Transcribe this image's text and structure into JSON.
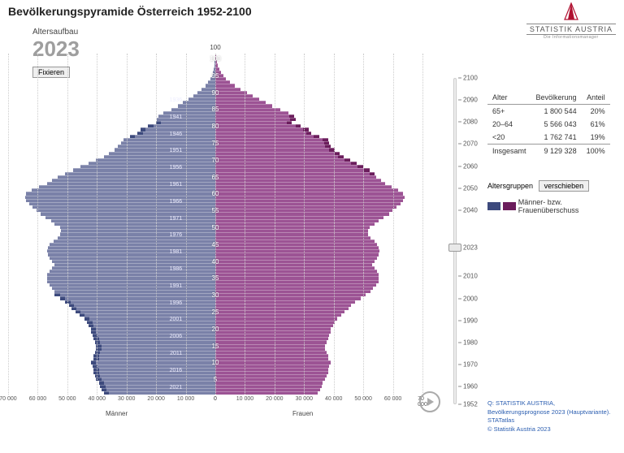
{
  "title": "Bevölkerungspyramide Österreich 1952-2100",
  "logo": {
    "brand": "STATISTIK AUSTRIA",
    "sub": "Die Informationsmanager"
  },
  "yearbox": {
    "label": "Altersaufbau",
    "year": "2023",
    "fix_btn": "Fixieren"
  },
  "chart": {
    "type": "population-pyramid",
    "y_top_label": "100",
    "male_color": "#7a81a8",
    "male_over_color": "#3d4a7d",
    "female_color": "#9c5394",
    "female_over_color": "#6b1d5c",
    "bg": "#ffffff",
    "x_max": 80000,
    "x_ticks_left": [
      "70 000",
      "60 000",
      "50 000",
      "40 000",
      "30 000",
      "20 000",
      "10 000",
      "0"
    ],
    "x_ticks_right": [
      "0",
      "10 000",
      "20 000",
      "30 000",
      "40 000",
      "50 000",
      "60 000",
      "70 000"
    ],
    "x_label_left": "Männer",
    "x_label_right": "Frauen",
    "y_ticks": [
      5,
      10,
      15,
      20,
      25,
      30,
      35,
      40,
      45,
      50,
      55,
      60,
      65,
      70,
      75,
      80,
      85,
      90,
      95,
      100
    ],
    "birthyear_marks": [
      1936,
      1941,
      1946,
      1951,
      1956,
      1961,
      1966,
      1971,
      1976,
      1981,
      1986,
      1991,
      1996,
      2001,
      2006,
      2011,
      2016,
      2021
    ],
    "ages": [
      0,
      1,
      2,
      3,
      4,
      5,
      6,
      7,
      8,
      9,
      10,
      11,
      12,
      13,
      14,
      15,
      16,
      17,
      18,
      19,
      20,
      21,
      22,
      23,
      24,
      25,
      26,
      27,
      28,
      29,
      30,
      31,
      32,
      33,
      34,
      35,
      36,
      37,
      38,
      39,
      40,
      41,
      42,
      43,
      44,
      45,
      46,
      47,
      48,
      49,
      50,
      51,
      52,
      53,
      54,
      55,
      56,
      57,
      58,
      59,
      60,
      61,
      62,
      63,
      64,
      65,
      66,
      67,
      68,
      69,
      70,
      71,
      72,
      73,
      74,
      75,
      76,
      77,
      78,
      79,
      80,
      81,
      82,
      83,
      84,
      85,
      86,
      87,
      88,
      89,
      90,
      91,
      92,
      93,
      94,
      95,
      96,
      97,
      98,
      99,
      100
    ],
    "male": [
      41000,
      42000,
      42500,
      43000,
      44000,
      44500,
      45000,
      45000,
      45500,
      46000,
      45000,
      45000,
      44500,
      44000,
      44000,
      44500,
      45000,
      45500,
      46000,
      46000,
      47000,
      47500,
      48500,
      50500,
      52000,
      53500,
      54500,
      56000,
      58000,
      60000,
      62000,
      63000,
      64000,
      65000,
      65000,
      65000,
      64000,
      63000,
      62000,
      63000,
      64000,
      64500,
      65000,
      64500,
      64000,
      62500,
      61000,
      60000,
      59500,
      60000,
      62000,
      63500,
      65500,
      67500,
      69000,
      70500,
      72000,
      73000,
      73500,
      73000,
      71000,
      68000,
      65000,
      63000,
      61000,
      58000,
      55000,
      52000,
      49000,
      46000,
      43000,
      41000,
      39000,
      37500,
      36500,
      35500,
      31000,
      28000,
      27000,
      24000,
      21000,
      22500,
      22000,
      20000,
      17000,
      14500,
      12500,
      10500,
      8500,
      6800,
      5200,
      3800,
      2800,
      1900,
      1300,
      900,
      600,
      380,
      240,
      150,
      90
    ],
    "female": [
      39500,
      40500,
      41000,
      41500,
      42500,
      43000,
      43500,
      43500,
      44000,
      44500,
      43500,
      43500,
      43000,
      42500,
      42500,
      43000,
      43500,
      44000,
      44500,
      44500,
      45500,
      46000,
      47000,
      48500,
      50000,
      51500,
      52500,
      54000,
      56000,
      58000,
      60000,
      61000,
      62000,
      63000,
      63000,
      63000,
      62500,
      61500,
      60500,
      61500,
      62500,
      63000,
      63500,
      63000,
      62500,
      61500,
      60000,
      59000,
      59000,
      59500,
      61500,
      63000,
      65000,
      67000,
      68500,
      70000,
      71500,
      72500,
      73000,
      72500,
      70500,
      68000,
      65500,
      64000,
      62000,
      59500,
      57500,
      55000,
      52500,
      50000,
      47500,
      46000,
      44000,
      42500,
      42000,
      41500,
      38000,
      35000,
      34000,
      31000,
      27500,
      29000,
      28500,
      28200,
      25000,
      22000,
      19500,
      17000,
      14500,
      12200,
      9800,
      7600,
      5800,
      4200,
      3000,
      2100,
      1450,
      980,
      640,
      400,
      250
    ],
    "male_over": [
      43000,
      44000,
      44500,
      45000,
      46000,
      46500,
      47000,
      47000,
      47500,
      48000,
      47000,
      47000,
      46500,
      46000,
      46000,
      46500,
      47000,
      47500,
      48000,
      48000,
      49000,
      49500,
      50500,
      52500,
      54000,
      55500,
      56500,
      58000,
      60000,
      62000,
      62000,
      63000,
      64000,
      65000,
      65000,
      65000,
      64000,
      63000,
      62000,
      63000,
      64000,
      64500,
      65000,
      64500,
      64000,
      62500,
      61000,
      60000,
      59500,
      60000,
      62000,
      63500,
      65500,
      67500,
      69000,
      70500,
      72000,
      73000,
      73500,
      73000,
      71000,
      68000,
      65000,
      63000,
      61000,
      58000,
      55000,
      52000,
      49000,
      46000,
      43000,
      41000,
      39000,
      37500,
      36500,
      35500,
      33000,
      30000,
      29000,
      26000,
      23000,
      22500,
      22000,
      20000,
      17000,
      14500,
      12500,
      10500,
      8500,
      6800,
      5200,
      3800,
      2800,
      1900,
      1300,
      900,
      600,
      380,
      240,
      150,
      90
    ],
    "female_over": [
      39500,
      40500,
      41000,
      41500,
      42500,
      43000,
      43500,
      43500,
      44000,
      44500,
      43500,
      43500,
      43000,
      42500,
      42500,
      43000,
      43500,
      44000,
      44500,
      44500,
      45500,
      46000,
      47000,
      48500,
      50000,
      51500,
      52500,
      54000,
      56000,
      58000,
      60000,
      61000,
      62000,
      63000,
      63000,
      63000,
      62500,
      61500,
      60500,
      61500,
      62500,
      63000,
      63500,
      63000,
      62500,
      61500,
      60000,
      59000,
      59000,
      59500,
      61500,
      63000,
      65000,
      67000,
      68500,
      70000,
      71500,
      72500,
      73000,
      72500,
      70500,
      68000,
      65500,
      64000,
      62000,
      61500,
      59500,
      57000,
      54500,
      52000,
      49500,
      48000,
      46000,
      44500,
      44000,
      43500,
      40000,
      37000,
      36000,
      33000,
      29500,
      31000,
      30500,
      28200,
      25000,
      22000,
      19500,
      17000,
      14500,
      12200,
      9800,
      7600,
      5800,
      4200,
      3000,
      2100,
      1450,
      980,
      640,
      400,
      250
    ]
  },
  "slider": {
    "min": 1952,
    "max": 2100,
    "value": 2023,
    "ticks": [
      2100,
      2090,
      2080,
      2070,
      2060,
      2050,
      2040,
      2023,
      2010,
      2000,
      1990,
      1980,
      1970,
      1960,
      1952
    ]
  },
  "table": {
    "headers": [
      "Alter",
      "Bevölkerung",
      "Anteil"
    ],
    "rows": [
      {
        "age": "65+",
        "pop": "1 800 544",
        "share": "20%"
      },
      {
        "age": "20–64",
        "pop": "5 566 043",
        "share": "61%"
      },
      {
        "age": "<20",
        "pop": "1 762 741",
        "share": "19%"
      }
    ],
    "total": {
      "label": "Insgesamt",
      "pop": "9 129 328",
      "share": "100%"
    }
  },
  "shift": {
    "label": "Altersgruppen",
    "btn": "verschieben"
  },
  "legend": {
    "text": "Männer- bzw. Frauenüberschuss"
  },
  "source": {
    "l1": "Q: STATISTIK AUSTRIA,",
    "l2": "Bevölkerungsprognose 2023 (Hauptvariante).",
    "l3": "STATatlas",
    "l4": "© Statistik Austria 2023"
  }
}
